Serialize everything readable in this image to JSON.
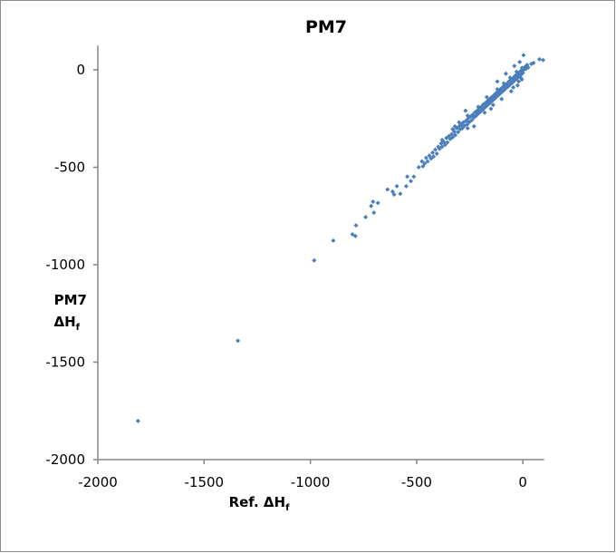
{
  "chart_data": {
    "type": "scatter",
    "title": "PM7",
    "xlabel": "Ref. ΔH",
    "xlabel_sub": "f",
    "ylabel_line1": "PM7",
    "ylabel_line2": "ΔH",
    "ylabel_sub": "f",
    "xlim": [
      -2000,
      100
    ],
    "ylim": [
      -2000,
      125
    ],
    "xticks": [
      -2000,
      -1500,
      -1000,
      -500,
      0
    ],
    "yticks": [
      0,
      -500,
      -1000,
      -1500,
      -2000
    ],
    "grid": false,
    "legend": "none",
    "marker_color": "#4a7ebb",
    "points": [
      [
        -1811,
        -1802
      ],
      [
        -1341,
        -1390
      ],
      [
        -982,
        -978
      ],
      [
        -892,
        -876
      ],
      [
        -802,
        -844
      ],
      [
        -788,
        -853
      ],
      [
        -785,
        -798
      ],
      [
        -740,
        -756
      ],
      [
        -714,
        -699
      ],
      [
        -705,
        -677
      ],
      [
        -701,
        -733
      ],
      [
        -682,
        -683
      ],
      [
        -637,
        -614
      ],
      [
        -613,
        -625
      ],
      [
        -606,
        -640
      ],
      [
        -593,
        -597
      ],
      [
        -577,
        -636
      ],
      [
        -549,
        -597
      ],
      [
        -544,
        -548
      ],
      [
        -527,
        -571
      ],
      [
        -513,
        -548
      ],
      [
        -490,
        -500
      ],
      [
        -475,
        -470
      ],
      [
        -470,
        -495
      ],
      [
        -462,
        -480
      ],
      [
        -455,
        -452
      ],
      [
        -448,
        -470
      ],
      [
        -440,
        -440
      ],
      [
        -432,
        -455
      ],
      [
        -425,
        -425
      ],
      [
        -420,
        -445
      ],
      [
        -412,
        -410
      ],
      [
        -405,
        -430
      ],
      [
        -398,
        -395
      ],
      [
        -392,
        -405
      ],
      [
        -385,
        -378
      ],
      [
        -380,
        -395
      ],
      [
        -372,
        -370
      ],
      [
        -366,
        -385
      ],
      [
        -360,
        -350
      ],
      [
        -355,
        -372
      ],
      [
        -348,
        -340
      ],
      [
        -342,
        -355
      ],
      [
        -335,
        -330
      ],
      [
        -330,
        -346
      ],
      [
        -322,
        -318
      ],
      [
        -318,
        -335
      ],
      [
        -312,
        -300
      ],
      [
        -305,
        -320
      ],
      [
        -300,
        -290
      ],
      [
        -295,
        -305
      ],
      [
        -290,
        -282
      ],
      [
        -285,
        -300
      ],
      [
        -280,
        -270
      ],
      [
        -275,
        -288
      ],
      [
        -268,
        -262
      ],
      [
        -262,
        -280
      ],
      [
        -258,
        -250
      ],
      [
        -252,
        -268
      ],
      [
        -246,
        -240
      ],
      [
        -240,
        -258
      ],
      [
        -236,
        -230
      ],
      [
        -230,
        -245
      ],
      [
        -225,
        -218
      ],
      [
        -220,
        -236
      ],
      [
        -215,
        -210
      ],
      [
        -210,
        -225
      ],
      [
        -205,
        -198
      ],
      [
        -200,
        -215
      ],
      [
        -196,
        -190
      ],
      [
        -190,
        -205
      ],
      [
        -186,
        -178
      ],
      [
        -180,
        -195
      ],
      [
        -176,
        -170
      ],
      [
        -170,
        -185
      ],
      [
        -166,
        -160
      ],
      [
        -160,
        -175
      ],
      [
        -156,
        -150
      ],
      [
        -150,
        -165
      ],
      [
        -146,
        -140
      ],
      [
        -140,
        -155
      ],
      [
        -136,
        -130
      ],
      [
        -130,
        -145
      ],
      [
        -126,
        -120
      ],
      [
        -120,
        -135
      ],
      [
        -116,
        -110
      ],
      [
        -110,
        -125
      ],
      [
        -106,
        -100
      ],
      [
        -100,
        -115
      ],
      [
        -96,
        -90
      ],
      [
        -90,
        -105
      ],
      [
        -86,
        -80
      ],
      [
        -80,
        -95
      ],
      [
        -76,
        -72
      ],
      [
        -70,
        -86
      ],
      [
        -66,
        -60
      ],
      [
        -60,
        -76
      ],
      [
        -56,
        -50
      ],
      [
        -50,
        -66
      ],
      [
        -46,
        -42
      ],
      [
        -40,
        -56
      ],
      [
        -36,
        -30
      ],
      [
        -30,
        -46
      ],
      [
        -26,
        -22
      ],
      [
        -20,
        -36
      ],
      [
        -16,
        -12
      ],
      [
        -10,
        -26
      ],
      [
        -6,
        -2
      ],
      [
        0,
        -16
      ],
      [
        -4,
        10
      ],
      [
        5,
        0
      ],
      [
        10,
        15
      ],
      [
        15,
        5
      ],
      [
        20,
        25
      ],
      [
        25,
        12
      ],
      [
        -30,
        -10
      ],
      [
        -60,
        -40
      ],
      [
        -90,
        -70
      ],
      [
        -120,
        -100
      ],
      [
        -25,
        -80
      ],
      [
        -55,
        -110
      ],
      [
        -10,
        -40
      ],
      [
        -170,
        -140
      ],
      [
        -210,
        -190
      ],
      [
        -260,
        -235
      ],
      [
        -300,
        -270
      ],
      [
        -230,
        -290
      ],
      [
        -120,
        -60
      ],
      [
        -80,
        -20
      ],
      [
        -40,
        20
      ],
      [
        -270,
        -210
      ],
      [
        -330,
        -305
      ],
      [
        -380,
        -360
      ],
      [
        3,
        75
      ],
      [
        78,
        54
      ],
      [
        95,
        50
      ],
      [
        40,
        30
      ],
      [
        50,
        35
      ],
      [
        -15,
        40
      ],
      [
        -150,
        -200
      ],
      [
        -20,
        -60
      ],
      [
        -5,
        -50
      ],
      [
        -45,
        -90
      ],
      [
        -100,
        -150
      ],
      [
        -140,
        -180
      ],
      [
        -180,
        -220
      ],
      [
        -320,
        -290
      ],
      [
        -260,
        -300
      ]
    ]
  }
}
